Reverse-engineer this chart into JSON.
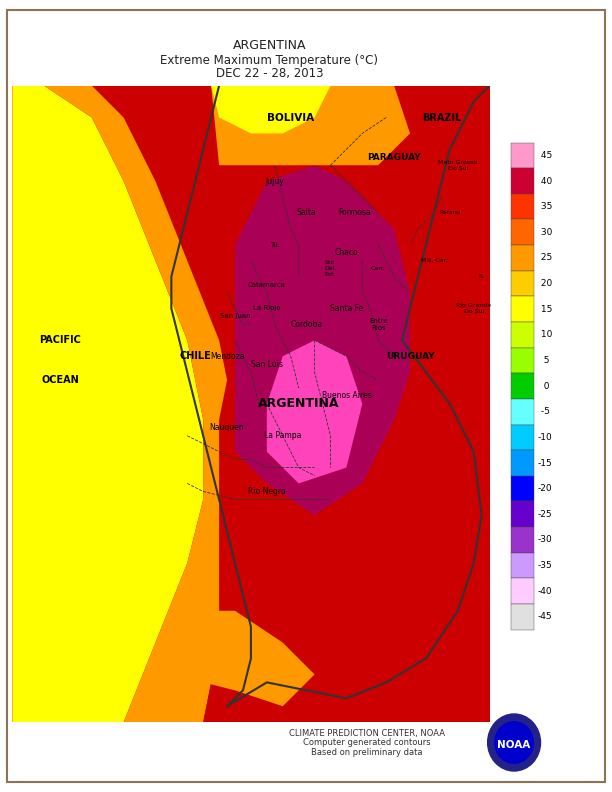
{
  "title_line1": "ARGENTINA",
  "title_line2": "Extreme Maximum Temperature (°C)",
  "title_line3": "DEC 22 - 28, 2013",
  "colorbar_levels": [
    45,
    40,
    35,
    30,
    25,
    20,
    15,
    10,
    5,
    0,
    -5,
    -10,
    -15,
    -20,
    -25,
    -30,
    -35,
    -40,
    -45
  ],
  "colorbar_colors": [
    "#FF99CC",
    "#CC0033",
    "#FF3300",
    "#FF6600",
    "#FF9900",
    "#FFCC00",
    "#FFFF00",
    "#CCFF00",
    "#99FF00",
    "#00CC00",
    "#66FFFF",
    "#00CCFF",
    "#0099FF",
    "#0000FF",
    "#6600CC",
    "#9933CC",
    "#CC99FF",
    "#FFCCFF",
    "#E0E0E0"
  ],
  "footer_line1": "CLIMATE PREDICTION CENTER, NOAA",
  "footer_line2": "Computer generated contours",
  "footer_line3": "Based on preliminary data",
  "map_bg": "#FFFFFF",
  "border_color": "#8B7355",
  "noaa_circle_color": "#0000CC",
  "yellow_color": "#FFFF00",
  "orange_color": "#FF9900",
  "red_color": "#CC0000",
  "dark_red_color": "#990000",
  "magenta_color": "#AA0055",
  "pink_color": "#FF44BB",
  "map_xlim": [
    -82,
    -52
  ],
  "map_ylim": [
    -57,
    -17
  ]
}
